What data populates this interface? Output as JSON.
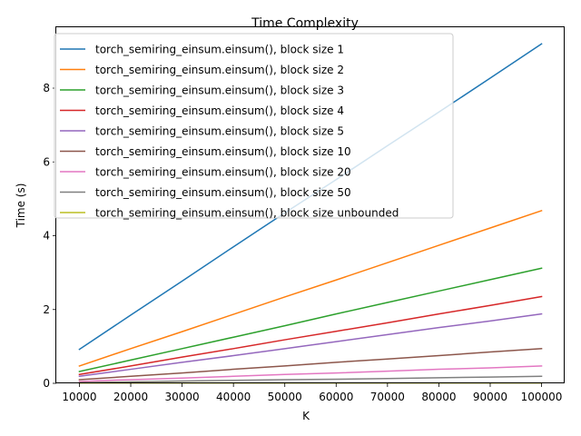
{
  "chart_data": {
    "type": "line",
    "title": "Time Complexity",
    "xlabel": "K",
    "ylabel": "Time (s)",
    "xlim": [
      5500,
      104500
    ],
    "ylim": [
      0,
      9.65
    ],
    "xticks": [
      10000,
      20000,
      30000,
      40000,
      50000,
      60000,
      70000,
      80000,
      90000,
      100000
    ],
    "yticks": [
      0,
      2,
      4,
      6,
      8
    ],
    "grid": false,
    "legend_position": "upper left",
    "x": [
      10000,
      20000,
      30000,
      40000,
      50000,
      60000,
      70000,
      80000,
      90000,
      100000
    ],
    "series": [
      {
        "name": "torch_semiring_einsum.einsum(), block size 1",
        "color": "#1f77b4",
        "values": [
          0.92,
          1.85,
          2.77,
          3.7,
          4.62,
          5.52,
          6.44,
          7.35,
          8.27,
          9.2
        ]
      },
      {
        "name": "torch_semiring_einsum.einsum(), block size 2",
        "color": "#ff7f0e",
        "values": [
          0.47,
          0.94,
          1.4,
          1.87,
          2.34,
          2.8,
          3.27,
          3.74,
          4.21,
          4.68
        ]
      },
      {
        "name": "torch_semiring_einsum.einsum(), block size 3",
        "color": "#2ca02c",
        "values": [
          0.32,
          0.63,
          0.94,
          1.25,
          1.56,
          1.88,
          2.19,
          2.5,
          2.81,
          3.12
        ]
      },
      {
        "name": "torch_semiring_einsum.einsum(), block size 4",
        "color": "#d62728",
        "values": [
          0.24,
          0.47,
          0.71,
          0.94,
          1.18,
          1.41,
          1.64,
          1.88,
          2.11,
          2.35
        ]
      },
      {
        "name": "torch_semiring_einsum.einsum(), block size 5",
        "color": "#9467bd",
        "values": [
          0.19,
          0.38,
          0.57,
          0.75,
          0.94,
          1.13,
          1.32,
          1.51,
          1.69,
          1.88
        ]
      },
      {
        "name": "torch_semiring_einsum.einsum(), block size 10",
        "color": "#8c564b",
        "values": [
          0.1,
          0.19,
          0.28,
          0.38,
          0.47,
          0.57,
          0.66,
          0.75,
          0.85,
          0.94
        ]
      },
      {
        "name": "torch_semiring_einsum.einsum(), block size 20",
        "color": "#e377c2",
        "values": [
          0.05,
          0.1,
          0.14,
          0.19,
          0.24,
          0.28,
          0.33,
          0.38,
          0.42,
          0.47
        ]
      },
      {
        "name": "torch_semiring_einsum.einsum(), block size 50",
        "color": "#7f7f7f",
        "values": [
          0.02,
          0.04,
          0.06,
          0.08,
          0.1,
          0.11,
          0.13,
          0.15,
          0.17,
          0.19
        ]
      },
      {
        "name": "torch_semiring_einsum.einsum(), block size unbounded",
        "color": "#bcbd22",
        "values": [
          0.01,
          0.01,
          0.01,
          0.01,
          0.01,
          0.01,
          0.01,
          0.01,
          0.01,
          0.01
        ]
      }
    ]
  }
}
